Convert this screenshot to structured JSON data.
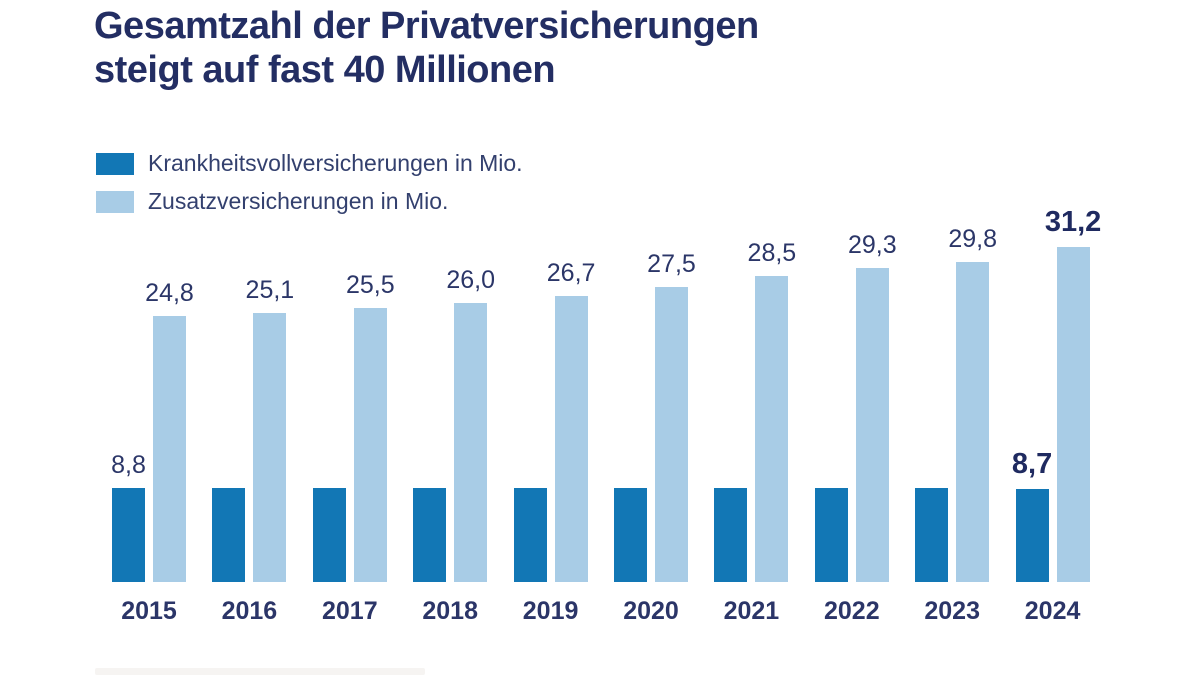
{
  "title": {
    "line1": "Gesamtzahl der Privatversicherungen",
    "line2": "steigt auf fast 40 Millionen"
  },
  "legend": [
    {
      "label": "Krankheitsvollversicherungen in Mio.",
      "color": "#1277b5"
    },
    {
      "label": "Zusatzversicherungen in Mio.",
      "color": "#a8cce6"
    }
  ],
  "colors": {
    "title_navy": "#232e63",
    "label_navy": "#2b3668",
    "dark_bar": "#1277b5",
    "light_bar": "#a8cce6",
    "background": "#ffffff"
  },
  "chart_data": {
    "type": "bar",
    "categories": [
      "2015",
      "2016",
      "2017",
      "2018",
      "2019",
      "2020",
      "2021",
      "2022",
      "2023",
      "2024"
    ],
    "series": [
      {
        "name": "Krankheitsvollversicherungen in Mio.",
        "color": "#1277b5",
        "values": [
          8.8,
          8.8,
          8.8,
          8.8,
          8.8,
          8.8,
          8.8,
          8.8,
          8.8,
          8.7
        ],
        "data_labels": [
          "8,8",
          "",
          "",
          "",
          "",
          "",
          "",
          "",
          "",
          "8,7"
        ],
        "bold_labels": [
          false,
          false,
          false,
          false,
          false,
          false,
          false,
          false,
          false,
          true
        ]
      },
      {
        "name": "Zusatzversicherungen in Mio.",
        "color": "#a8cce6",
        "values": [
          24.8,
          25.1,
          25.5,
          26.0,
          26.7,
          27.5,
          28.5,
          29.3,
          29.8,
          31.2
        ],
        "data_labels": [
          "24,8",
          "25,1",
          "25,5",
          "26,0",
          "26,7",
          "27,5",
          "28,5",
          "29,3",
          "29,8",
          "31,2"
        ],
        "bold_labels": [
          false,
          false,
          false,
          false,
          false,
          false,
          false,
          false,
          false,
          true
        ]
      }
    ],
    "title": "Gesamtzahl der Privatversicherungen steigt auf fast 40 Millionen",
    "xlabel": "",
    "ylabel": "",
    "ylim": [
      0,
      35
    ],
    "grid": false,
    "axes_visible": false,
    "legend_position": "top-left",
    "decimal_separator": ","
  }
}
